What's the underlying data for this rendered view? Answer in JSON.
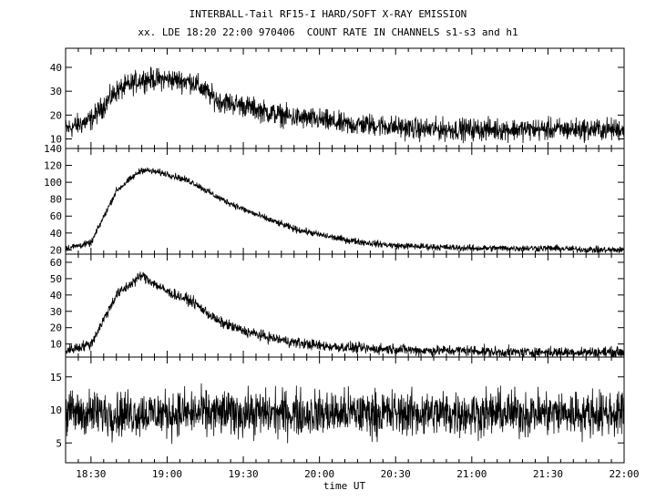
{
  "chart_data": {
    "type": "line",
    "title": "INTERBALL-Tail RF15-I HARD/SOFT X-RAY EMISSION",
    "subtitle": "xx. LDE 18:20 22:00 970406  COUNT RATE IN CHANNELS s1-s3 and h1",
    "xlabel": "time UT",
    "x_range": [
      "18:20",
      "22:00"
    ],
    "x_ticks": [
      "18:30",
      "19:00",
      "19:30",
      "20:00",
      "20:30",
      "21:00",
      "21:30",
      "22:00"
    ],
    "panels": [
      {
        "ylim": [
          6,
          48
        ],
        "y_ticks": [
          10,
          20,
          30,
          40
        ],
        "x": [
          "18:20",
          "18:30",
          "18:40",
          "18:50",
          "19:00",
          "19:10",
          "19:20",
          "19:30",
          "19:40",
          "19:50",
          "20:00",
          "20:10",
          "20:20",
          "20:30",
          "20:40",
          "20:50",
          "21:00",
          "21:10",
          "21:20",
          "21:30",
          "21:40",
          "21:50",
          "22:00"
        ],
        "y": [
          14,
          18,
          30,
          35,
          35,
          34,
          26,
          24,
          21,
          19,
          18,
          16,
          16,
          15,
          14,
          14,
          14,
          14,
          14,
          14,
          14,
          14,
          14
        ],
        "noise": 3.5
      },
      {
        "ylim": [
          15,
          140
        ],
        "y_ticks": [
          20,
          40,
          60,
          80,
          100,
          120,
          140
        ],
        "x": [
          "18:20",
          "18:30",
          "18:40",
          "18:50",
          "19:00",
          "19:10",
          "19:20",
          "19:30",
          "19:40",
          "19:50",
          "20:00",
          "20:10",
          "20:20",
          "20:30",
          "20:40",
          "20:50",
          "21:00",
          "21:10",
          "21:20",
          "21:30",
          "21:40",
          "21:50",
          "22:00"
        ],
        "y": [
          22,
          28,
          90,
          115,
          110,
          100,
          82,
          68,
          56,
          45,
          38,
          32,
          28,
          25,
          24,
          23,
          22,
          22,
          22,
          22,
          21,
          20,
          20
        ],
        "noise": 3
      },
      {
        "ylim": [
          2,
          65
        ],
        "y_ticks": [
          10,
          20,
          30,
          40,
          50,
          60
        ],
        "x": [
          "18:20",
          "18:30",
          "18:40",
          "18:50",
          "19:00",
          "19:10",
          "19:20",
          "19:30",
          "19:40",
          "19:50",
          "20:00",
          "20:10",
          "20:20",
          "20:30",
          "20:40",
          "20:50",
          "21:00",
          "21:10",
          "21:20",
          "21:30",
          "21:40",
          "21:50",
          "22:00"
        ],
        "y": [
          6,
          10,
          40,
          52,
          42,
          36,
          24,
          18,
          14,
          11,
          9,
          8,
          7,
          7,
          6,
          6,
          6,
          5,
          5,
          5,
          5,
          5,
          5
        ],
        "noise": 2.5
      },
      {
        "ylim": [
          2,
          18
        ],
        "y_ticks": [
          5,
          10,
          15
        ],
        "x": [
          "18:20",
          "18:30",
          "18:40",
          "18:50",
          "19:00",
          "19:10",
          "19:20",
          "19:30",
          "19:40",
          "19:50",
          "20:00",
          "20:10",
          "20:20",
          "20:30",
          "20:40",
          "20:50",
          "21:00",
          "21:10",
          "21:20",
          "21:30",
          "21:40",
          "21:50",
          "22:00"
        ],
        "y": [
          9.5,
          9.5,
          9.5,
          9.5,
          9.5,
          9.5,
          9.5,
          9.5,
          9.5,
          9.5,
          9.5,
          9.5,
          9.5,
          9.5,
          9.5,
          9.5,
          9.5,
          9.5,
          9.5,
          9.5,
          9.5,
          9.5,
          9.5
        ],
        "noise": 2.6
      }
    ],
    "grid": false,
    "colors": {
      "line": "#000000",
      "background": "#ffffff"
    }
  }
}
